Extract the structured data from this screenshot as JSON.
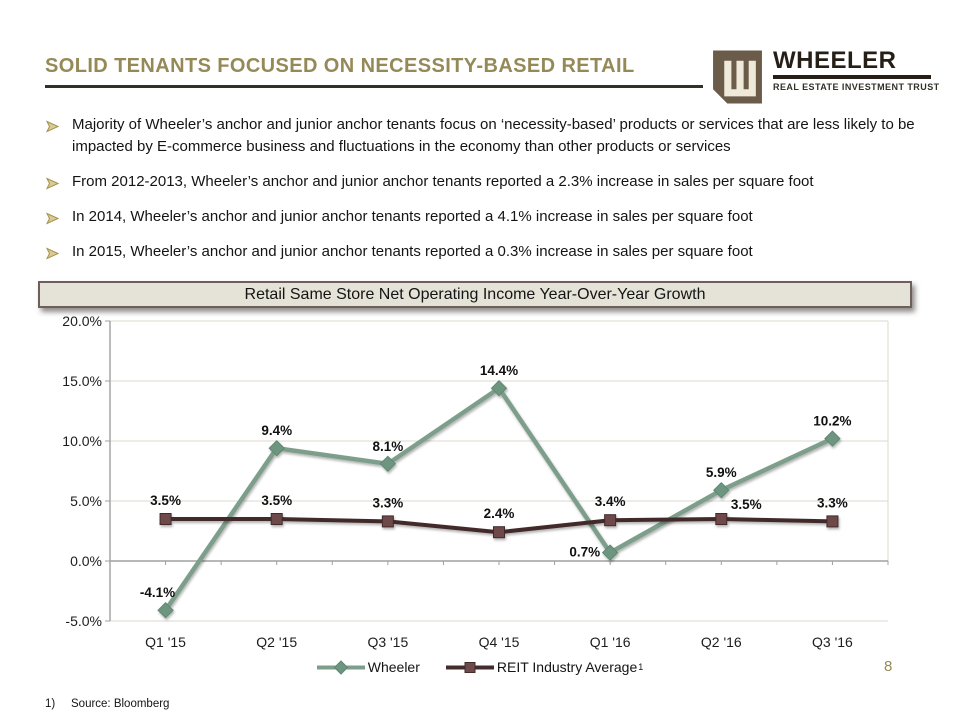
{
  "slide": {
    "title": "SOLID TENANTS FOCUSED ON NECESSITY-BASED RETAIL",
    "page_number": "8",
    "footnote_marker": "1)",
    "footnote_text": "Source: Bloomberg"
  },
  "logo": {
    "brand": "WHEELER",
    "tagline": "REAL ESTATE INVESTMENT TRUST"
  },
  "theme": {
    "title_color": "#958A57",
    "bullet_arrow_color": "#A6924F",
    "logo_brown": "#6B5B49",
    "logo_cream": "#EFE9D9",
    "chart_titlebar_bg": "#E5E3D7",
    "chart_titlebar_border": "#6F5F5C",
    "gridline_color": "#DDD9CE",
    "axis_color": "#A0A0A0"
  },
  "bullets": [
    "Majority of Wheeler’s anchor and junior anchor tenants focus on ‘necessity-based’ products or services that are less likely to be impacted by E-commerce business and fluctuations in the economy than other products or services",
    "From 2012-2013, Wheeler’s anchor and junior anchor tenants reported a 2.3% increase in sales per square foot",
    "In 2014, Wheeler’s anchor and junior anchor tenants reported a 4.1% increase in sales per square foot",
    "In 2015, Wheeler’s anchor and junior anchor tenants reported a 0.3% increase in sales per square foot"
  ],
  "chart_data": {
    "type": "line",
    "title": "Retail Same Store Net Operating Income Year-Over-Year Growth",
    "categories": [
      "Q1 '15",
      "Q2 '15",
      "Q3 '15",
      "Q4 '15",
      "Q1 '16",
      "Q2 '16",
      "Q3 '16"
    ],
    "series": [
      {
        "name": "Wheeler",
        "marker": "diamond",
        "color": "#7C9E8B",
        "marker_color": "#6E9580",
        "marker_stroke": "#5E8770",
        "values": [
          -4.1,
          9.4,
          8.1,
          14.4,
          0.7,
          5.9,
          10.2
        ],
        "labels": [
          "-4.1%",
          "9.4%",
          "8.1%",
          "14.4%",
          "0.7%",
          "5.9%",
          "10.2%"
        ],
        "label_offsets": [
          [
            -8,
            -13
          ],
          [
            0,
            -13
          ],
          [
            0,
            -13
          ],
          [
            0,
            -13
          ],
          [
            -10,
            4,
            "end"
          ],
          [
            0,
            -13
          ],
          [
            0,
            -13
          ]
        ]
      },
      {
        "name": "REIT Industry Average",
        "superscript": "1",
        "marker": "square",
        "color": "#422C2C",
        "marker_color": "#6E4A4A",
        "marker_stroke": "#432C2C",
        "values": [
          3.5,
          3.5,
          3.3,
          2.4,
          3.4,
          3.5,
          3.3
        ],
        "labels": [
          "3.5%",
          "3.5%",
          "3.3%",
          "2.4%",
          "3.4%",
          "3.5%",
          "3.3%"
        ],
        "label_offsets": [
          [
            0,
            -14
          ],
          [
            0,
            -14
          ],
          [
            0,
            -14
          ],
          [
            0,
            -14
          ],
          [
            0,
            -14
          ],
          [
            25,
            -10
          ],
          [
            0,
            -14
          ]
        ]
      }
    ],
    "y_tick_values": [
      20,
      15,
      10,
      5,
      0,
      -5
    ],
    "y_tick_labels": [
      "20.0%",
      "15.0%",
      "10.0%",
      "5.0%",
      "0.0%",
      "-5.0%"
    ],
    "ylim": [
      -5,
      20
    ],
    "grid": true,
    "legend_position": "bottom"
  }
}
